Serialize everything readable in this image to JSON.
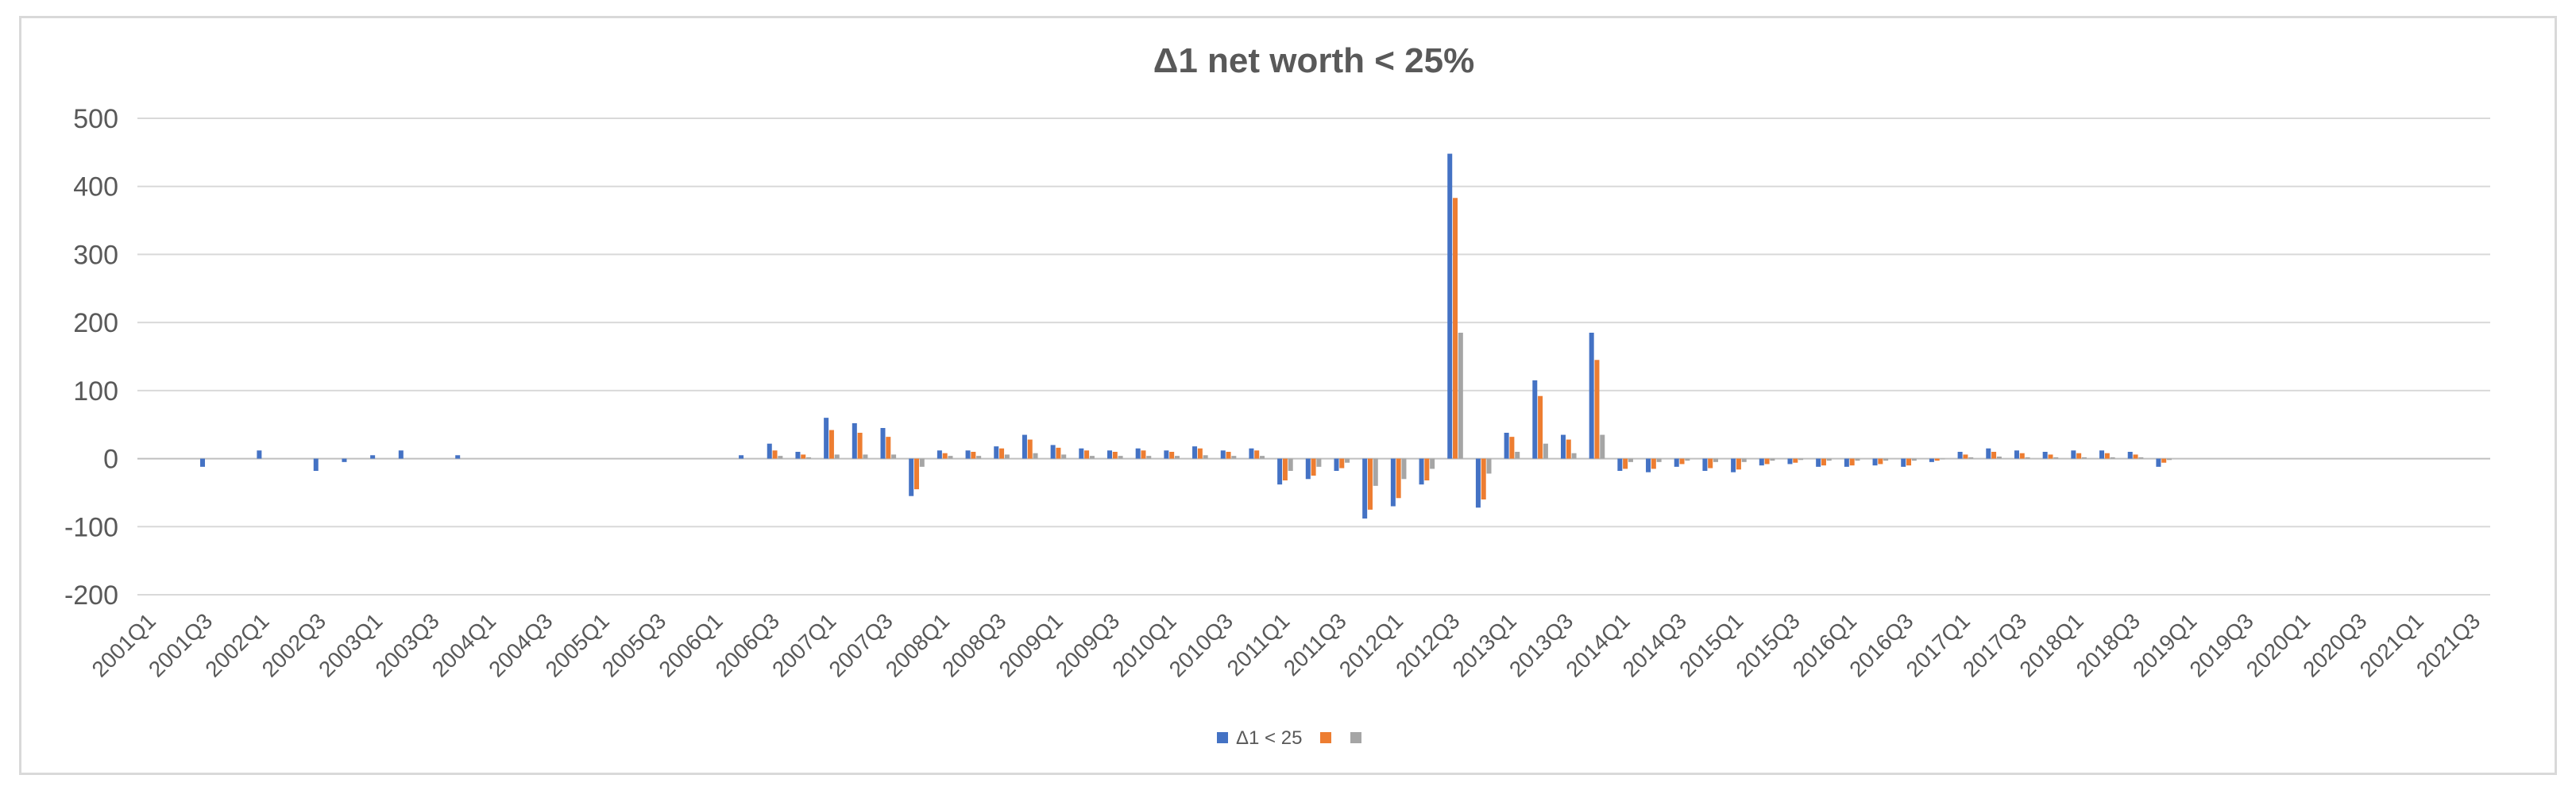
{
  "chart_data": {
    "type": "bar",
    "title": "Δ1 net worth < 25%",
    "xlabel": "",
    "ylabel": "",
    "ylim": [
      -200,
      500
    ],
    "yticks": [
      -200,
      -100,
      0,
      100,
      200,
      300,
      400,
      500
    ],
    "grid": true,
    "legend_position": "bottom",
    "categories": [
      "2001Q1",
      "2001Q2",
      "2001Q3",
      "2001Q4",
      "2002Q1",
      "2002Q2",
      "2002Q3",
      "2002Q4",
      "2003Q1",
      "2003Q2",
      "2003Q3",
      "2003Q4",
      "2004Q1",
      "2004Q2",
      "2004Q3",
      "2004Q4",
      "2005Q1",
      "2005Q2",
      "2005Q3",
      "2005Q4",
      "2006Q1",
      "2006Q2",
      "2006Q3",
      "2006Q4",
      "2007Q1",
      "2007Q2",
      "2007Q3",
      "2007Q4",
      "2008Q1",
      "2008Q2",
      "2008Q3",
      "2008Q4",
      "2009Q1",
      "2009Q2",
      "2009Q3",
      "2009Q4",
      "2010Q1",
      "2010Q2",
      "2010Q3",
      "2010Q4",
      "2011Q1",
      "2011Q2",
      "2011Q3",
      "2011Q4",
      "2012Q1",
      "2012Q2",
      "2012Q3",
      "2012Q4",
      "2013Q1",
      "2013Q2",
      "2013Q3",
      "2013Q4",
      "2014Q1",
      "2014Q2",
      "2014Q3",
      "2014Q4",
      "2015Q1",
      "2015Q2",
      "2015Q3",
      "2015Q4",
      "2016Q1",
      "2016Q2",
      "2016Q3",
      "2016Q4",
      "2017Q1",
      "2017Q2",
      "2017Q3",
      "2017Q4",
      "2018Q1",
      "2018Q2",
      "2018Q3",
      "2018Q4",
      "2019Q1",
      "2019Q2",
      "2019Q3",
      "2019Q4",
      "2020Q1",
      "2020Q2",
      "2020Q3",
      "2020Q4",
      "2021Q1",
      "2021Q2",
      "2021Q3"
    ],
    "x_tick_labels": [
      "2001Q1",
      "2001Q3",
      "2002Q1",
      "2002Q3",
      "2003Q1",
      "2003Q3",
      "2004Q1",
      "2004Q3",
      "2005Q1",
      "2005Q3",
      "2006Q1",
      "2006Q3",
      "2007Q1",
      "2007Q3",
      "2008Q1",
      "2008Q3",
      "2009Q1",
      "2009Q3",
      "2010Q1",
      "2010Q3",
      "2011Q1",
      "2011Q3",
      "2012Q1",
      "2012Q3",
      "2013Q1",
      "2013Q3",
      "2014Q1",
      "2014Q3",
      "2015Q1",
      "2015Q3",
      "2016Q1",
      "2016Q3",
      "2017Q1",
      "2017Q3",
      "2018Q1",
      "2018Q3",
      "2019Q1",
      "2019Q3",
      "2020Q1",
      "2020Q3",
      "2021Q1",
      "2021Q3"
    ],
    "series": [
      {
        "name": "Δ1 < 25",
        "color": "#4472c4",
        "values": [
          0,
          0,
          -12,
          0,
          12,
          0,
          -18,
          -5,
          5,
          12,
          0,
          5,
          0,
          0,
          0,
          0,
          0,
          0,
          0,
          0,
          0,
          5,
          22,
          10,
          60,
          52,
          45,
          -55,
          12,
          12,
          18,
          35,
          20,
          15,
          12,
          15,
          12,
          18,
          12,
          15,
          -38,
          -30,
          -18,
          -88,
          -70,
          -38,
          448,
          -72,
          38,
          115,
          35,
          185,
          -18,
          -20,
          -12,
          -18,
          -20,
          -10,
          -8,
          -12,
          -12,
          -10,
          -12,
          -5,
          10,
          15,
          12,
          10,
          12,
          12,
          10,
          -12,
          0,
          0,
          0,
          0,
          0,
          0,
          0,
          0,
          0,
          0,
          0
        ]
      },
      {
        "name": "",
        "color": "#ed7d31",
        "values": [
          0,
          0,
          0,
          0,
          0,
          0,
          0,
          0,
          0,
          0,
          0,
          0,
          0,
          0,
          0,
          0,
          0,
          0,
          0,
          0,
          0,
          0,
          12,
          6,
          42,
          38,
          32,
          -45,
          8,
          10,
          15,
          28,
          16,
          12,
          10,
          12,
          10,
          15,
          10,
          12,
          -32,
          -25,
          -14,
          -75,
          -58,
          -32,
          383,
          -60,
          32,
          92,
          28,
          145,
          -15,
          -15,
          -8,
          -14,
          -16,
          -8,
          -6,
          -10,
          -10,
          -8,
          -10,
          -3,
          6,
          10,
          8,
          6,
          8,
          8,
          6,
          -6,
          0,
          0,
          0,
          0,
          0,
          0,
          0,
          0,
          0,
          0,
          0
        ]
      },
      {
        "name": "",
        "color": "#a5a5a5",
        "values": [
          0,
          0,
          0,
          0,
          0,
          0,
          0,
          0,
          0,
          0,
          0,
          0,
          0,
          0,
          0,
          0,
          0,
          0,
          0,
          0,
          0,
          0,
          4,
          2,
          6,
          6,
          6,
          -12,
          4,
          4,
          6,
          8,
          6,
          4,
          4,
          4,
          4,
          5,
          4,
          4,
          -18,
          -12,
          -6,
          -40,
          -30,
          -15,
          185,
          -22,
          10,
          22,
          8,
          35,
          -5,
          -5,
          -3,
          -5,
          -5,
          -3,
          -2,
          -3,
          -3,
          -3,
          -3,
          -1,
          2,
          3,
          2,
          2,
          2,
          2,
          2,
          -2,
          0,
          0,
          0,
          0,
          0,
          0,
          0,
          0,
          0,
          0,
          0
        ]
      }
    ]
  }
}
